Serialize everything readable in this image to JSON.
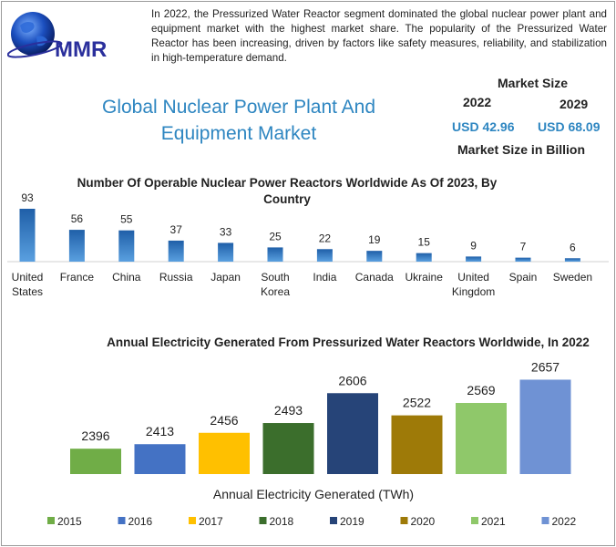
{
  "brand": {
    "name": "MMR"
  },
  "summary": "In 2022, the Pressurized Water Reactor segment dominated the global nuclear power plant and equipment market with the highest market share. The popularity of the Pressurized Water Reactor has been increasing, driven by factors like safety measures, reliability, and stabilization in high-temperature demand.",
  "title": "Global Nuclear Power Plant And Equipment Market",
  "market_size": {
    "label": "Market Size",
    "year_a": "2022",
    "year_b": "2029",
    "value_a": "USD 42.96",
    "value_b": "USD 68.09",
    "unit_label": "Market Size in Billion"
  },
  "colors": {
    "accent": "#2e86c1",
    "bar_blue": "#2e75b6"
  },
  "chart_data": [
    {
      "type": "bar",
      "title": "Number Of Operable Nuclear Power Reactors Worldwide As Of 2023, By Country",
      "categories": [
        "United States",
        "France",
        "China",
        "Russia",
        "Japan",
        "South Korea",
        "India",
        "Canada",
        "Ukraine",
        "United Kingdom",
        "Spain",
        "Sweden"
      ],
      "values": [
        93,
        56,
        55,
        37,
        33,
        25,
        22,
        19,
        15,
        9,
        7,
        6
      ],
      "data_labels": [
        "93",
        "56",
        "55",
        "37",
        "33",
        "25",
        "22",
        "19",
        "15",
        "9",
        "7",
        "6"
      ],
      "ylim": [
        0,
        93
      ],
      "grid": false
    },
    {
      "type": "bar",
      "title": "Annual Electricity Generated From Pressurized Water Reactors Worldwide, In 2022",
      "xlabel": "Annual Electricity Generated (TWh)",
      "categories": [
        "2015",
        "2016",
        "2017",
        "2018",
        "2019",
        "2020",
        "2021",
        "2022"
      ],
      "values": [
        2396,
        2413,
        2456,
        2493,
        2606,
        2522,
        2569,
        2657
      ],
      "data_labels": [
        "2396",
        "2413",
        "2456",
        "2493",
        "2606",
        "2522",
        "2569",
        "2657"
      ],
      "colors": [
        "#70ad47",
        "#4472c4",
        "#ffc000",
        "#3b6e2c",
        "#264478",
        "#9e7a08",
        "#8fc86a",
        "#6f92d4"
      ],
      "ylim": [
        2300,
        2700
      ],
      "legend": "bottom",
      "grid": false
    }
  ]
}
